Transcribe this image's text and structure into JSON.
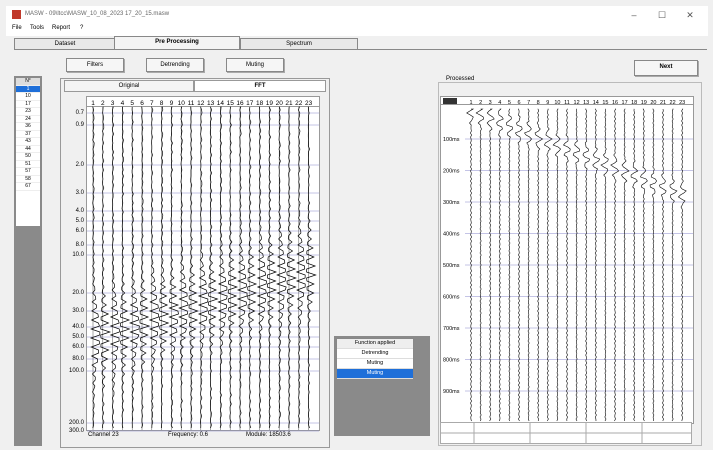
{
  "window": {
    "title": "MASW - 09\\ltcc\\MASW_10_08_2023 17_20_15.masw",
    "minimize_glyph": "–",
    "maximize_glyph": "☐",
    "close_glyph": "✕"
  },
  "menu": [
    "File",
    "Tools",
    "Report",
    "?"
  ],
  "tabs": [
    "Dataset",
    "Pre Processing",
    "Spectrum"
  ],
  "toolbar": {
    "filters": "Filters",
    "detrending": "Detrending",
    "muting": "Muting"
  },
  "next_button": "Next",
  "trace_list": {
    "header": "N°",
    "items": [
      "1",
      "10",
      "17",
      "23",
      "24",
      "36",
      "37",
      "43",
      "44",
      "50",
      "51",
      "57",
      "58",
      "67"
    ]
  },
  "subtabs": {
    "original": "Original",
    "fft": "FFT"
  },
  "channels": [
    "1",
    "2",
    "3",
    "4",
    "5",
    "6",
    "7",
    "8",
    "9",
    "10",
    "11",
    "12",
    "13",
    "14",
    "15",
    "16",
    "17",
    "18",
    "19",
    "20",
    "21",
    "22",
    "23"
  ],
  "left_axis_labels": [
    "0.7",
    "0.9",
    "2.0",
    "3.0",
    "4.0",
    "5.0",
    "6.0",
    "8.0",
    "10.0",
    "20.0",
    "30.0",
    "40.0",
    "50.0",
    "60.0",
    "80.0",
    "100.0",
    "200.0",
    "300.0"
  ],
  "status": {
    "channel": "Channel 23",
    "frequency": "Frequency: 0.6",
    "module": "Module: 18503.6"
  },
  "processed": {
    "title": "Processed",
    "time_labels": [
      "100ms",
      "200ms",
      "300ms",
      "400ms",
      "500ms",
      "600ms",
      "700ms",
      "800ms",
      "900ms"
    ]
  },
  "function_list": {
    "header": "Function applied",
    "items": [
      "Detrending",
      "Muting",
      "Muting"
    ]
  },
  "colors": {
    "selection": "#1e6fd9",
    "gray_panel": "#8a8a8a",
    "grid": "#8888cc"
  }
}
